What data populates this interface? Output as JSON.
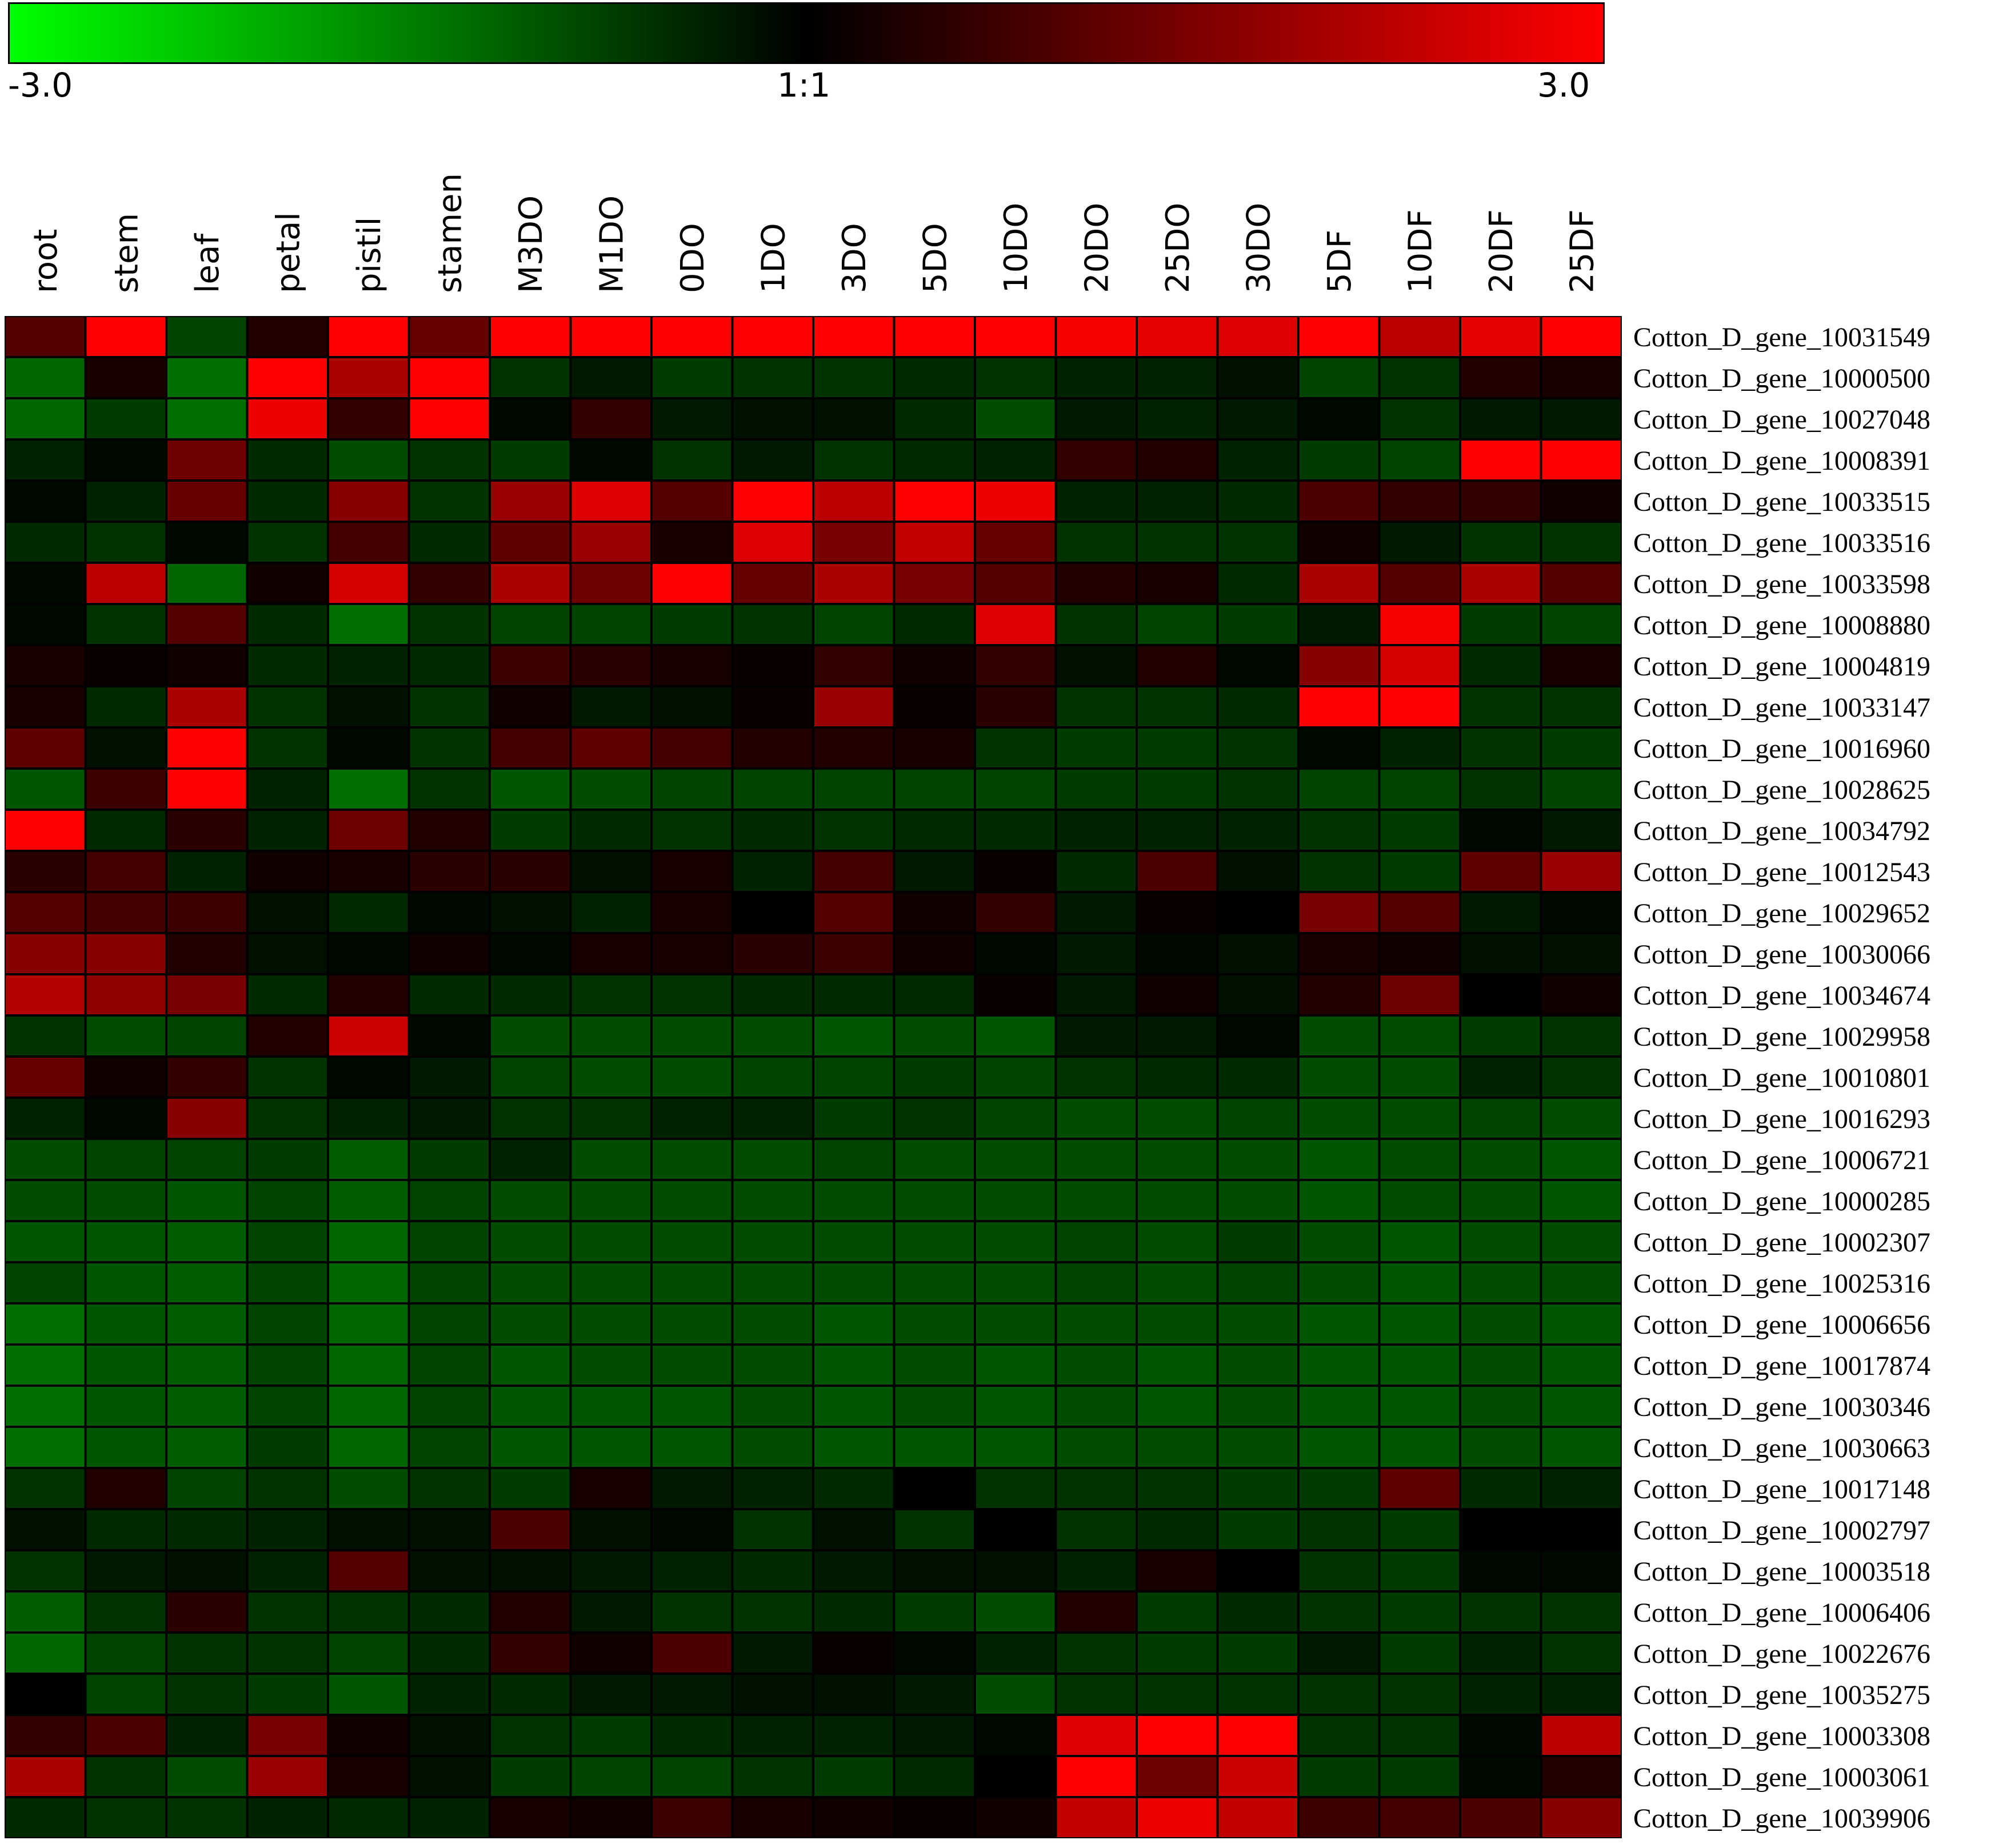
{
  "chart_data": {
    "type": "heatmap",
    "color_scale": {
      "min": -3.0,
      "center": "1:1",
      "max": 3.0,
      "min_label": "-3.0",
      "center_label": "1:1",
      "max_label": "3.0",
      "low_color": "#00ff00",
      "mid_color": "#000000",
      "high_color": "#ff0000"
    },
    "columns": [
      "root",
      "stem",
      "leaf",
      "petal",
      "pistil",
      "stamen",
      "M3DO",
      "M1DO",
      "0DO",
      "1DO",
      "3DO",
      "5DO",
      "10DO",
      "20DO",
      "25DO",
      "30DO",
      "5DF",
      "10DF",
      "20DF",
      "25DF"
    ],
    "rows": [
      "Cotton_D_gene_10031549",
      "Cotton_D_gene_10000500",
      "Cotton_D_gene_10027048",
      "Cotton_D_gene_10008391",
      "Cotton_D_gene_10033515",
      "Cotton_D_gene_10033516",
      "Cotton_D_gene_10033598",
      "Cotton_D_gene_10008880",
      "Cotton_D_gene_10004819",
      "Cotton_D_gene_10033147",
      "Cotton_D_gene_10016960",
      "Cotton_D_gene_10028625",
      "Cotton_D_gene_10034792",
      "Cotton_D_gene_10012543",
      "Cotton_D_gene_10029652",
      "Cotton_D_gene_10030066",
      "Cotton_D_gene_10034674",
      "Cotton_D_gene_10029958",
      "Cotton_D_gene_10010801",
      "Cotton_D_gene_10016293",
      "Cotton_D_gene_10006721",
      "Cotton_D_gene_10000285",
      "Cotton_D_gene_10002307",
      "Cotton_D_gene_10025316",
      "Cotton_D_gene_10006656",
      "Cotton_D_gene_10017874",
      "Cotton_D_gene_10030346",
      "Cotton_D_gene_10030663",
      "Cotton_D_gene_10017148",
      "Cotton_D_gene_10002797",
      "Cotton_D_gene_10003518",
      "Cotton_D_gene_10006406",
      "Cotton_D_gene_10022676",
      "Cotton_D_gene_10035275",
      "Cotton_D_gene_10003308",
      "Cotton_D_gene_10003061",
      "Cotton_D_gene_10039906"
    ],
    "values": [
      [
        1.0,
        3.0,
        -0.8,
        0.4,
        3.0,
        1.2,
        3.0,
        3.0,
        3.0,
        3.0,
        3.0,
        3.0,
        3.0,
        2.9,
        2.7,
        2.6,
        3.0,
        2.2,
        2.7,
        3.0
      ],
      [
        -1.2,
        0.3,
        -1.3,
        3.0,
        2.0,
        3.0,
        -0.6,
        -0.3,
        -0.7,
        -0.6,
        -0.6,
        -0.5,
        -0.6,
        -0.4,
        -0.4,
        -0.2,
        -0.8,
        -0.6,
        0.4,
        0.3
      ],
      [
        -1.2,
        -0.7,
        -1.3,
        2.8,
        0.6,
        3.0,
        -0.1,
        0.6,
        -0.3,
        -0.2,
        -0.2,
        -0.5,
        -0.9,
        -0.3,
        -0.4,
        -0.3,
        -0.1,
        -0.6,
        -0.3,
        -0.3
      ],
      [
        -0.4,
        -0.1,
        1.3,
        -0.5,
        -0.9,
        -0.6,
        -0.7,
        -0.1,
        -0.6,
        -0.3,
        -0.6,
        -0.5,
        -0.4,
        0.6,
        0.4,
        -0.4,
        -0.7,
        -0.8,
        3.0,
        3.0
      ],
      [
        -0.1,
        -0.4,
        1.2,
        -0.5,
        1.6,
        -0.6,
        1.8,
        2.6,
        1.0,
        3.0,
        2.2,
        3.0,
        2.8,
        -0.4,
        -0.4,
        -0.5,
        0.9,
        0.6,
        0.6,
        0.2
      ],
      [
        -0.5,
        -0.6,
        -0.1,
        -0.6,
        0.8,
        -0.5,
        1.1,
        1.8,
        0.3,
        2.6,
        1.4,
        2.3,
        1.2,
        -0.6,
        -0.6,
        -0.6,
        0.2,
        -0.3,
        -0.6,
        -0.6
      ],
      [
        -0.1,
        2.2,
        -1.2,
        0.2,
        2.5,
        0.6,
        2.0,
        1.3,
        3.0,
        1.2,
        2.0,
        1.4,
        1.0,
        0.4,
        0.3,
        -0.5,
        2.0,
        1.0,
        2.0,
        1.0
      ],
      [
        -0.1,
        -0.6,
        1.0,
        -0.5,
        -1.3,
        -0.6,
        -0.8,
        -0.8,
        -0.7,
        -0.6,
        -0.8,
        -0.5,
        2.6,
        -0.6,
        -0.8,
        -0.7,
        -0.3,
        2.9,
        -0.7,
        -0.8
      ],
      [
        0.3,
        0.1,
        0.2,
        -0.5,
        -0.4,
        -0.5,
        0.7,
        0.5,
        0.3,
        0.1,
        0.6,
        0.2,
        0.6,
        -0.2,
        0.4,
        -0.1,
        1.6,
        2.5,
        -0.5,
        0.3
      ],
      [
        0.3,
        -0.5,
        2.0,
        -0.6,
        -0.2,
        -0.6,
        0.2,
        -0.3,
        -0.2,
        0.1,
        1.8,
        0.1,
        0.5,
        -0.6,
        -0.6,
        -0.5,
        3.0,
        3.0,
        -0.6,
        -0.6
      ],
      [
        1.1,
        -0.2,
        3.0,
        -0.6,
        -0.1,
        -0.6,
        0.8,
        1.1,
        0.8,
        0.4,
        0.4,
        0.3,
        -0.6,
        -0.7,
        -0.7,
        -0.6,
        -0.1,
        -0.4,
        -0.6,
        -0.7
      ],
      [
        -1.0,
        0.7,
        3.0,
        -0.4,
        -1.3,
        -0.6,
        -1.0,
        -0.9,
        -0.8,
        -0.8,
        -0.8,
        -0.8,
        -0.8,
        -0.7,
        -0.7,
        -0.6,
        -0.8,
        -0.8,
        -0.6,
        -0.8
      ],
      [
        3.0,
        -0.5,
        0.5,
        -0.4,
        1.3,
        0.4,
        -0.7,
        -0.5,
        -0.6,
        -0.5,
        -0.6,
        -0.5,
        -0.5,
        -0.4,
        -0.4,
        -0.4,
        -0.6,
        -0.7,
        -0.1,
        -0.3
      ],
      [
        0.5,
        0.8,
        -0.4,
        0.2,
        0.3,
        0.5,
        0.5,
        -0.2,
        0.3,
        -0.4,
        0.8,
        -0.3,
        0.1,
        -0.5,
        0.9,
        -0.2,
        -0.6,
        -0.7,
        1.1,
        1.8
      ],
      [
        1.0,
        0.8,
        0.7,
        -0.2,
        -0.5,
        -0.1,
        -0.2,
        -0.4,
        0.3,
        0.0,
        1.0,
        0.2,
        0.6,
        -0.3,
        0.1,
        0.0,
        1.4,
        1.0,
        -0.3,
        -0.1
      ],
      [
        1.6,
        1.6,
        0.4,
        -0.2,
        -0.1,
        0.2,
        -0.1,
        0.3,
        0.3,
        0.5,
        0.7,
        0.2,
        -0.1,
        -0.3,
        -0.1,
        -0.2,
        0.3,
        0.2,
        -0.2,
        -0.2
      ],
      [
        2.1,
        1.7,
        1.4,
        -0.5,
        0.4,
        -0.5,
        -0.5,
        -0.6,
        -0.6,
        -0.5,
        -0.5,
        -0.5,
        0.1,
        -0.3,
        0.2,
        -0.2,
        0.4,
        1.3,
        0.0,
        0.2
      ],
      [
        -0.6,
        -0.9,
        -0.8,
        0.4,
        2.4,
        -0.1,
        -0.9,
        -0.9,
        -0.9,
        -0.9,
        -1.0,
        -0.9,
        -1.0,
        -0.3,
        -0.3,
        -0.1,
        -0.9,
        -0.9,
        -0.7,
        -0.6
      ],
      [
        1.2,
        0.2,
        0.6,
        -0.6,
        -0.1,
        -0.3,
        -0.8,
        -0.9,
        -0.9,
        -0.8,
        -0.8,
        -0.7,
        -0.8,
        -0.6,
        -0.5,
        -0.5,
        -0.9,
        -0.9,
        -0.4,
        -0.6
      ],
      [
        -0.4,
        -0.1,
        1.6,
        -0.6,
        -0.4,
        -0.3,
        -0.6,
        -0.6,
        -0.4,
        -0.4,
        -0.7,
        -0.6,
        -0.8,
        -0.9,
        -0.9,
        -0.8,
        -0.9,
        -0.9,
        -0.8,
        -0.9
      ],
      [
        -0.9,
        -0.8,
        -0.8,
        -0.7,
        -1.1,
        -0.7,
        -0.4,
        -0.9,
        -0.9,
        -0.9,
        -0.8,
        -0.9,
        -0.9,
        -0.9,
        -0.9,
        -0.9,
        -1.0,
        -0.9,
        -0.9,
        -1.0
      ],
      [
        -0.9,
        -0.9,
        -1.0,
        -0.8,
        -1.1,
        -0.8,
        -0.9,
        -0.9,
        -0.9,
        -0.9,
        -0.9,
        -0.9,
        -0.9,
        -0.9,
        -0.9,
        -0.9,
        -1.0,
        -0.9,
        -0.9,
        -1.0
      ],
      [
        -1.0,
        -1.0,
        -1.1,
        -0.8,
        -1.2,
        -0.8,
        -0.9,
        -0.9,
        -0.9,
        -0.9,
        -0.9,
        -0.9,
        -0.9,
        -0.8,
        -0.9,
        -0.7,
        -0.9,
        -1.0,
        -0.9,
        -0.9
      ],
      [
        -0.8,
        -1.0,
        -1.1,
        -0.8,
        -1.2,
        -0.8,
        -0.9,
        -0.9,
        -0.9,
        -0.9,
        -0.9,
        -0.9,
        -0.9,
        -0.8,
        -0.9,
        -0.8,
        -0.9,
        -1.0,
        -0.9,
        -0.9
      ],
      [
        -1.3,
        -1.0,
        -1.1,
        -0.8,
        -1.2,
        -0.8,
        -0.9,
        -0.9,
        -0.9,
        -0.9,
        -1.0,
        -0.9,
        -0.9,
        -0.9,
        -0.9,
        -0.9,
        -1.0,
        -1.0,
        -0.9,
        -1.0
      ],
      [
        -1.3,
        -1.0,
        -1.1,
        -0.8,
        -1.2,
        -0.8,
        -1.0,
        -0.9,
        -0.9,
        -0.9,
        -1.0,
        -0.9,
        -1.0,
        -0.9,
        -1.0,
        -0.9,
        -1.0,
        -1.0,
        -0.9,
        -1.0
      ],
      [
        -1.3,
        -1.0,
        -1.1,
        -0.8,
        -1.2,
        -0.8,
        -1.0,
        -1.0,
        -1.0,
        -0.9,
        -1.0,
        -0.9,
        -1.0,
        -0.9,
        -1.0,
        -0.9,
        -1.0,
        -1.0,
        -0.9,
        -1.0
      ],
      [
        -1.3,
        -1.0,
        -1.1,
        -0.7,
        -1.2,
        -0.8,
        -1.0,
        -1.0,
        -1.0,
        -0.9,
        -1.0,
        -1.0,
        -1.0,
        -0.9,
        -0.9,
        -0.9,
        -1.0,
        -1.0,
        -0.9,
        -1.0
      ],
      [
        -0.6,
        0.4,
        -0.8,
        -0.6,
        -0.9,
        -0.6,
        -0.7,
        0.3,
        -0.3,
        -0.4,
        -0.5,
        0.0,
        -0.6,
        -0.6,
        -0.6,
        -0.7,
        -0.7,
        1.1,
        -0.5,
        -0.4
      ],
      [
        -0.2,
        -0.5,
        -0.5,
        -0.4,
        -0.2,
        -0.2,
        0.9,
        -0.2,
        -0.1,
        -0.6,
        -0.2,
        -0.6,
        0.0,
        -0.6,
        -0.5,
        -0.7,
        -0.6,
        -0.7,
        0.0,
        0.0
      ],
      [
        -0.6,
        -0.3,
        -0.2,
        -0.4,
        1.0,
        -0.2,
        -0.2,
        -0.3,
        -0.4,
        -0.5,
        -0.3,
        -0.2,
        -0.2,
        -0.4,
        0.3,
        0.0,
        -0.6,
        -0.7,
        -0.1,
        -0.1
      ],
      [
        -1.1,
        -0.6,
        0.5,
        -0.6,
        -0.6,
        -0.5,
        0.4,
        -0.3,
        -0.6,
        -0.6,
        -0.5,
        -0.7,
        -0.9,
        0.4,
        -0.7,
        -0.5,
        -0.6,
        -0.7,
        -0.6,
        -0.6
      ],
      [
        -1.2,
        -0.8,
        -0.6,
        -0.6,
        -0.8,
        -0.5,
        0.6,
        0.2,
        0.9,
        -0.3,
        0.1,
        -0.1,
        -0.4,
        -0.6,
        -0.7,
        -0.7,
        -0.3,
        -0.7,
        -0.4,
        -0.6
      ],
      [
        0.0,
        -0.8,
        -0.6,
        -0.7,
        -1.0,
        -0.4,
        -0.5,
        -0.3,
        -0.3,
        -0.2,
        -0.2,
        -0.3,
        -0.9,
        -0.6,
        -0.6,
        -0.6,
        -0.6,
        -0.6,
        -0.4,
        -0.4
      ],
      [
        0.6,
        0.9,
        -0.4,
        1.4,
        0.2,
        -0.2,
        -0.6,
        -0.7,
        -0.5,
        -0.4,
        -0.4,
        -0.3,
        -0.1,
        2.6,
        3.0,
        3.0,
        -0.6,
        -0.6,
        -0.1,
        2.2
      ],
      [
        2.0,
        -0.6,
        -0.9,
        1.8,
        0.3,
        -0.2,
        -0.7,
        -0.8,
        -0.8,
        -0.6,
        -0.7,
        -0.5,
        0.0,
        3.0,
        1.3,
        2.4,
        -0.7,
        -0.7,
        -0.1,
        0.4
      ],
      [
        -0.5,
        -0.6,
        -0.6,
        -0.4,
        -0.5,
        -0.4,
        0.3,
        0.2,
        0.7,
        0.3,
        0.2,
        0.1,
        0.2,
        2.3,
        2.8,
        2.3,
        0.7,
        0.8,
        0.9,
        1.6
      ]
    ]
  }
}
